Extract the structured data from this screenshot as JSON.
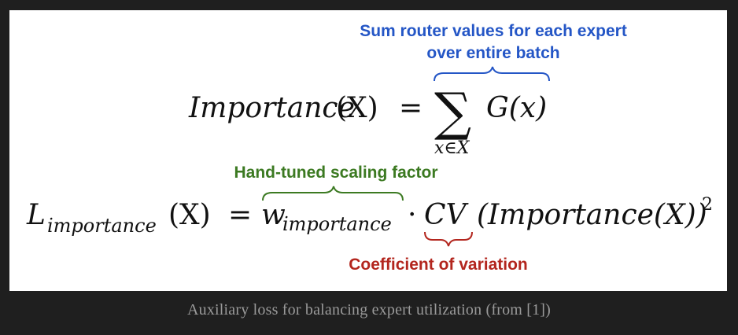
{
  "annotations": {
    "router_sum": "Sum router values for each expert over entire batch",
    "scaling_factor": "Hand-tuned scaling factor",
    "cv": "Coefficient of variation"
  },
  "equations": {
    "eq1": {
      "lhs_name": "Importance",
      "lhs_arg": "(X)",
      "equals": "=",
      "sum_symbol": "∑",
      "sum_subscript": "x∈X",
      "rhs": "G(x)"
    },
    "eq2": {
      "lhs_name": "L",
      "lhs_sub": "importance",
      "lhs_arg": "(X)",
      "equals": "=",
      "weight": "w",
      "weight_sub": "importance",
      "dot": "·",
      "cv": "CV",
      "cv_arg": "(Importance(X))",
      "exponent": "2"
    }
  },
  "caption": "Auxiliary loss for balancing expert utilization (from [1])",
  "colors": {
    "blue": "#2456c6",
    "green": "#3c7a22",
    "red": "#b3261e",
    "background": "#1f1f1f",
    "card": "#ffffff",
    "caption": "#9a9a9a"
  }
}
